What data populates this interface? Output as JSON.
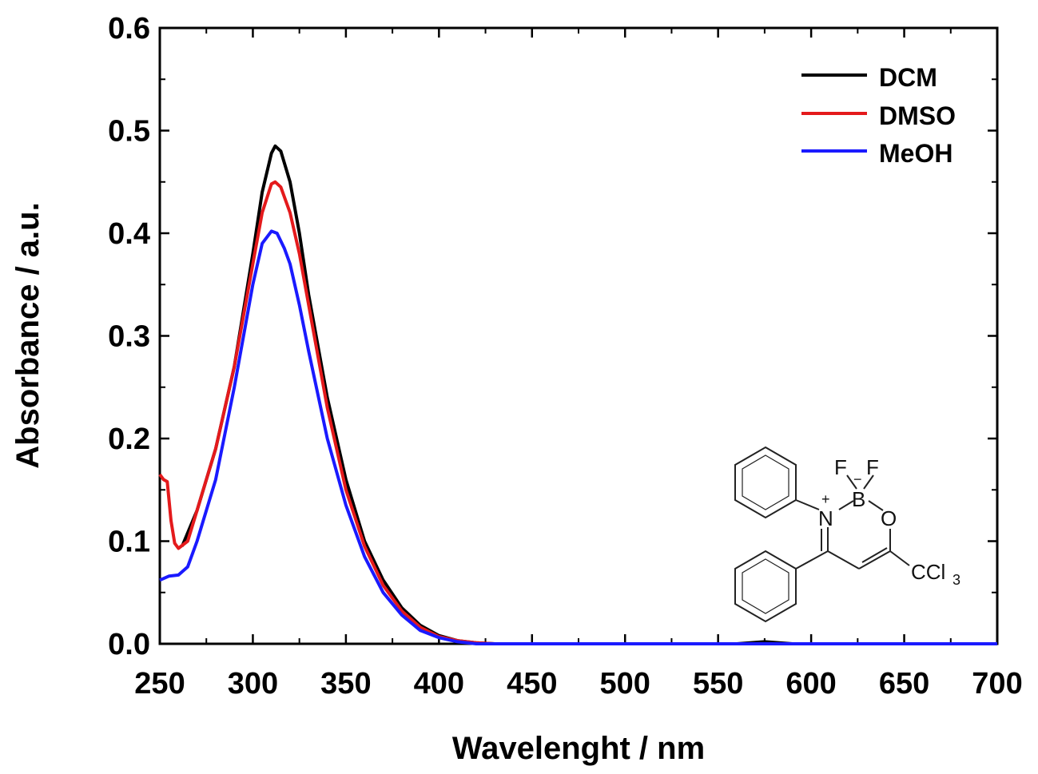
{
  "chart_data": {
    "type": "line",
    "title": "",
    "xlabel": "Wavelenght / nm",
    "ylabel": "Absorbance / a.u.",
    "xlim": [
      250,
      700
    ],
    "ylim": [
      0,
      0.6
    ],
    "x_ticks": [
      "250",
      "300",
      "350",
      "400",
      "450",
      "500",
      "550",
      "600",
      "650",
      "700"
    ],
    "y_ticks": [
      "0.0",
      "0.1",
      "0.2",
      "0.3",
      "0.4",
      "0.5",
      "0.6"
    ],
    "grid": false,
    "legend_position": "top-right",
    "series": [
      {
        "name": "DCM",
        "color": "#000000",
        "points": [
          [
            262,
            0.095
          ],
          [
            270,
            0.13
          ],
          [
            280,
            0.19
          ],
          [
            290,
            0.27
          ],
          [
            300,
            0.38
          ],
          [
            305,
            0.44
          ],
          [
            310,
            0.478
          ],
          [
            312,
            0.485
          ],
          [
            315,
            0.48
          ],
          [
            320,
            0.45
          ],
          [
            325,
            0.4
          ],
          [
            330,
            0.34
          ],
          [
            340,
            0.24
          ],
          [
            350,
            0.16
          ],
          [
            360,
            0.1
          ],
          [
            370,
            0.062
          ],
          [
            380,
            0.035
          ],
          [
            390,
            0.018
          ],
          [
            400,
            0.008
          ],
          [
            410,
            0.003
          ],
          [
            420,
            0.001
          ],
          [
            430,
            0.0
          ],
          [
            500,
            0.0
          ],
          [
            560,
            0.0
          ],
          [
            575,
            0.002
          ],
          [
            590,
            0.0
          ],
          [
            700,
            0.0
          ]
        ]
      },
      {
        "name": "DMSO",
        "color": "#e41a1c",
        "points": [
          [
            250,
            0.165
          ],
          [
            252,
            0.16
          ],
          [
            254,
            0.158
          ],
          [
            256,
            0.12
          ],
          [
            258,
            0.098
          ],
          [
            260,
            0.093
          ],
          [
            265,
            0.1
          ],
          [
            270,
            0.13
          ],
          [
            280,
            0.19
          ],
          [
            290,
            0.27
          ],
          [
            300,
            0.37
          ],
          [
            305,
            0.42
          ],
          [
            310,
            0.448
          ],
          [
            312,
            0.45
          ],
          [
            315,
            0.445
          ],
          [
            320,
            0.42
          ],
          [
            325,
            0.38
          ],
          [
            330,
            0.33
          ],
          [
            340,
            0.23
          ],
          [
            350,
            0.15
          ],
          [
            360,
            0.095
          ],
          [
            370,
            0.057
          ],
          [
            380,
            0.032
          ],
          [
            390,
            0.016
          ],
          [
            400,
            0.007
          ],
          [
            410,
            0.003
          ],
          [
            420,
            0.001
          ],
          [
            430,
            0.0
          ],
          [
            700,
            0.0
          ]
        ]
      },
      {
        "name": "MeOH",
        "color": "#1a1aff",
        "points": [
          [
            250,
            0.062
          ],
          [
            255,
            0.066
          ],
          [
            260,
            0.067
          ],
          [
            265,
            0.075
          ],
          [
            270,
            0.1
          ],
          [
            280,
            0.16
          ],
          [
            290,
            0.25
          ],
          [
            300,
            0.35
          ],
          [
            305,
            0.39
          ],
          [
            310,
            0.402
          ],
          [
            313,
            0.4
          ],
          [
            317,
            0.385
          ],
          [
            320,
            0.37
          ],
          [
            325,
            0.33
          ],
          [
            330,
            0.285
          ],
          [
            340,
            0.2
          ],
          [
            350,
            0.135
          ],
          [
            360,
            0.085
          ],
          [
            370,
            0.05
          ],
          [
            380,
            0.028
          ],
          [
            390,
            0.013
          ],
          [
            400,
            0.006
          ],
          [
            410,
            0.002
          ],
          [
            420,
            0.0
          ],
          [
            700,
            0.0
          ]
        ]
      }
    ],
    "inset_structure": {
      "atoms": [
        "F",
        "F",
        "B",
        "N",
        "O",
        "CCl",
        "3"
      ],
      "charges": [
        "+",
        "−"
      ]
    }
  }
}
